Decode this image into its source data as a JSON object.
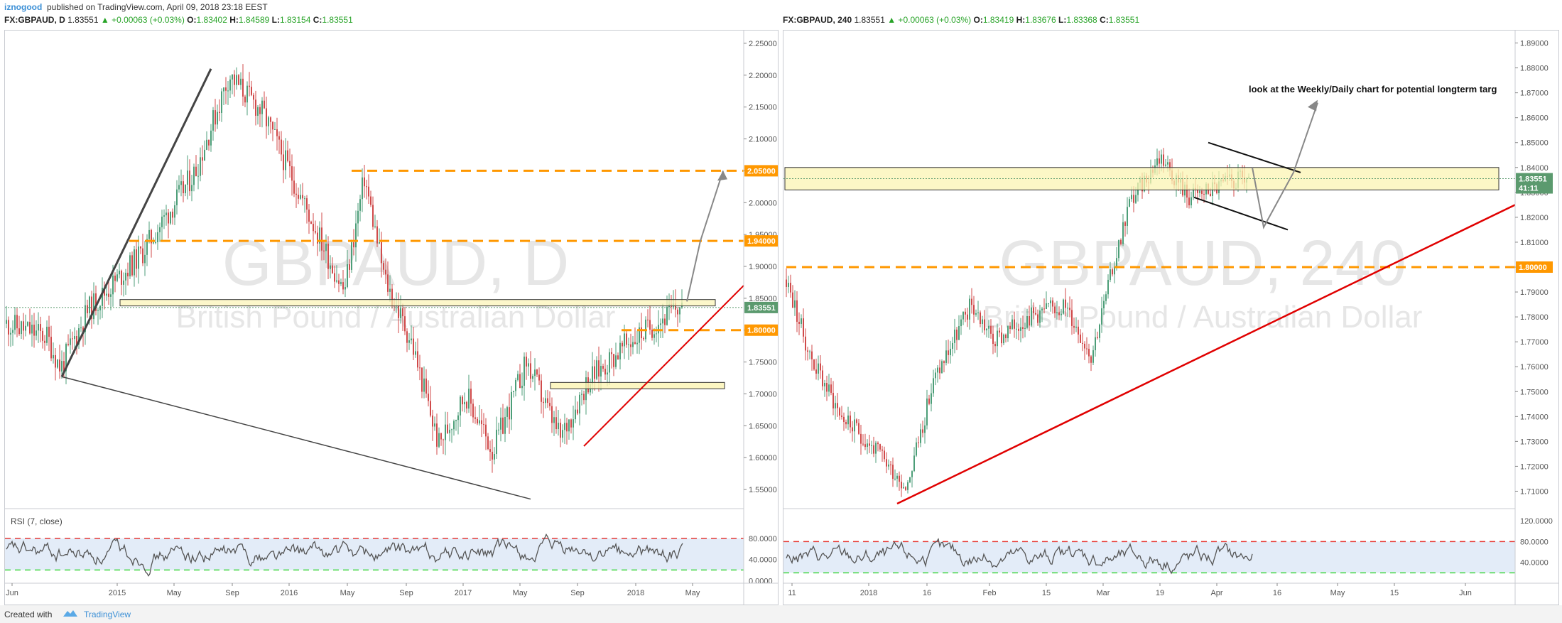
{
  "header": {
    "author": "iznogood",
    "published": "published on TradingView.com, April 09, 2018 23:18 EEST"
  },
  "left_chart": {
    "symbol_line": {
      "symbol": "FX:GBPAUD, D",
      "last": "1.83551",
      "change": "▲ +0.00063 (+0.03%)",
      "o_label": "O:",
      "o": "1.83402",
      "h_label": "H:",
      "h": "1.84589",
      "l_label": "L:",
      "l": "1.83154",
      "c_label": "C:",
      "c": "1.83551"
    },
    "watermark": "GBPAUD, D",
    "watermark_sub": "British Pound / Australian Dollar",
    "price_ticks": [
      "2.25000",
      "2.20000",
      "2.15000",
      "2.10000",
      "2.05000",
      "2.00000",
      "1.95000",
      "1.90000",
      "1.85000",
      "1.80000",
      "1.75000",
      "1.70000",
      "1.65000",
      "1.60000",
      "1.55000"
    ],
    "price_tags": [
      {
        "label": "2.05000",
        "color": "#ff9800",
        "value": 2.05
      },
      {
        "label": "1.94000",
        "color": "#ff9800",
        "value": 1.94
      },
      {
        "label": "1.83551",
        "color": "#5b9a6e",
        "value": 1.8355
      },
      {
        "label": "1.80000",
        "color": "#ff9800",
        "value": 1.8
      }
    ],
    "time_ticks": [
      "Jun",
      "2015",
      "May",
      "Sep",
      "2016",
      "May",
      "Sep",
      "2017",
      "May",
      "Sep",
      "2018",
      "May"
    ],
    "rsi_label": "RSI (7, close)",
    "rsi_ticks": [
      "80.0000",
      "40.0000",
      "0.0000"
    ]
  },
  "right_chart": {
    "symbol_line": {
      "symbol": "FX:GBPAUD, 240",
      "last": "1.83551",
      "change": "▲ +0.00063 (+0.03%)",
      "o_label": "O:",
      "o": "1.83419",
      "h_label": "H:",
      "h": "1.83676",
      "l_label": "L:",
      "l": "1.83368",
      "c_label": "C:",
      "c": "1.83551"
    },
    "watermark": "GBPAUD, 240",
    "watermark_sub": "British Pound / Australian Dollar",
    "annotation": "look at the Weekly/Daily chart for potential longterm targ",
    "price_ticks": [
      "1.89000",
      "1.88000",
      "1.87000",
      "1.86000",
      "1.85000",
      "1.84000",
      "1.83000",
      "1.82000",
      "1.81000",
      "1.80000",
      "1.79000",
      "1.78000",
      "1.77000",
      "1.76000",
      "1.75000",
      "1.74000",
      "1.73000",
      "1.72000",
      "1.71000"
    ],
    "price_tags": [
      {
        "label": "1.83551",
        "color": "#5b9a6e",
        "value": 1.8355
      },
      {
        "label": "41:11",
        "color": "#5b9a6e",
        "value": 1.8318
      },
      {
        "label": "1.80000",
        "color": "#ff9800",
        "value": 1.8
      }
    ],
    "time_ticks": [
      "11",
      "2018",
      "16",
      "Feb",
      "15",
      "Mar",
      "19",
      "Apr",
      "16",
      "May",
      "15",
      "Jun"
    ],
    "rsi_ticks": [
      "120.0000",
      "80.0000",
      "40.0000"
    ]
  },
  "footer": {
    "created_with": "Created with",
    "brand": "TradingView"
  },
  "chart_data": [
    {
      "type": "candlestick",
      "title": "FX:GBPAUD, D",
      "ylim": [
        1.53,
        2.26
      ],
      "x": [
        "Jun",
        "2015",
        "May",
        "Sep",
        "2016",
        "May",
        "Sep",
        "2017",
        "May",
        "Sep",
        "2018",
        "May"
      ],
      "price_path": [
        {
          "x": "Jun 2014",
          "y": 1.81
        },
        {
          "x": "Nov 2014",
          "y": 1.74
        },
        {
          "x": "Jan 2015",
          "y": 1.83
        },
        {
          "x": "Mar 2015",
          "y": 1.9
        },
        {
          "x": "May 2015",
          "y": 2.0
        },
        {
          "x": "Aug 2015",
          "y": 2.22
        },
        {
          "x": "Oct 2015",
          "y": 2.12
        },
        {
          "x": "Jan 2016",
          "y": 2.0
        },
        {
          "x": "Apr 2016",
          "y": 1.86
        },
        {
          "x": "May 2016",
          "y": 2.04
        },
        {
          "x": "Jun 2016",
          "y": 1.9
        },
        {
          "x": "Jul 2016",
          "y": 1.78
        },
        {
          "x": "Oct 2016",
          "y": 1.59
        },
        {
          "x": "Dec 2016",
          "y": 1.7
        },
        {
          "x": "Feb 2017",
          "y": 1.61
        },
        {
          "x": "May 2017",
          "y": 1.75
        },
        {
          "x": "Aug 2017",
          "y": 1.63
        },
        {
          "x": "Sep 2017",
          "y": 1.72
        },
        {
          "x": "Dec 2017",
          "y": 1.78
        },
        {
          "x": "Mar 2018",
          "y": 1.84
        }
      ],
      "levels": [
        2.05,
        1.94,
        1.8
      ],
      "zones": [
        [
          1.838,
          1.848
        ],
        [
          1.708,
          1.718
        ]
      ],
      "last": 1.83551,
      "rsi": {
        "period": 7,
        "upper": 80,
        "lower": 20
      }
    },
    {
      "type": "candlestick",
      "title": "FX:GBPAUD, 240",
      "ylim": [
        1.705,
        1.895
      ],
      "x": [
        "11",
        "2018",
        "16",
        "Feb",
        "15",
        "Mar",
        "19",
        "Apr",
        "16",
        "May",
        "15",
        "Jun"
      ],
      "price_path": [
        {
          "x": "Dec 11",
          "y": 1.795
        },
        {
          "x": "Dec 20",
          "y": 1.745
        },
        {
          "x": "Jan 2",
          "y": 1.725
        },
        {
          "x": "Jan 10",
          "y": 1.712
        },
        {
          "x": "Jan 20",
          "y": 1.755
        },
        {
          "x": "Feb 1",
          "y": 1.785
        },
        {
          "x": "Feb 10",
          "y": 1.77
        },
        {
          "x": "Feb 25",
          "y": 1.785
        },
        {
          "x": "Mar 10",
          "y": 1.765
        },
        {
          "x": "Mar 19",
          "y": 1.825
        },
        {
          "x": "Mar 25",
          "y": 1.848
        },
        {
          "x": "Apr 1",
          "y": 1.83
        },
        {
          "x": "Apr 9",
          "y": 1.8355
        }
      ],
      "levels": [
        1.8
      ],
      "zones": [
        [
          1.831,
          1.84
        ]
      ],
      "last": 1.83551,
      "rsi": {
        "upper": 80,
        "lower": 20
      }
    }
  ]
}
